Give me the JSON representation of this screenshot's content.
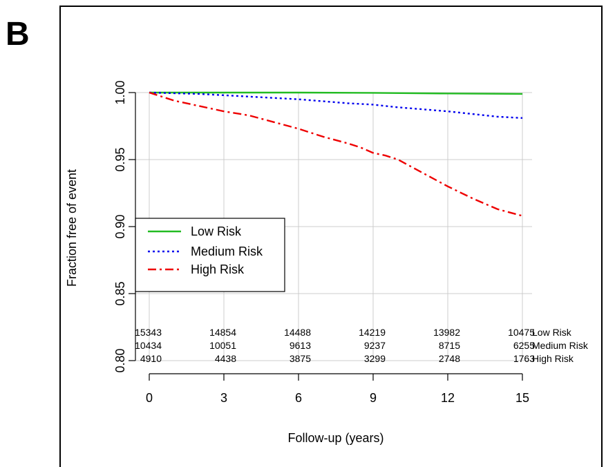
{
  "panel_label": "B",
  "chart_data": {
    "type": "line",
    "title": "",
    "xlabel": "Follow-up (years)",
    "ylabel": "Fraction free of event",
    "xlim": [
      0,
      15
    ],
    "ylim": [
      0.8,
      1.0
    ],
    "xticks": [
      0,
      3,
      6,
      9,
      12,
      15
    ],
    "yticks": [
      0.8,
      0.85,
      0.9,
      0.95,
      1.0
    ],
    "ytick_labels": [
      "0.80",
      "0.85",
      "0.90",
      "0.95",
      "1.00"
    ],
    "grid": true,
    "legend_position": "middle-left",
    "series": [
      {
        "name": "Low Risk",
        "color": "#22bb22",
        "line_style": "solid",
        "x": [
          0,
          3,
          6,
          9,
          12,
          15
        ],
        "y": [
          1.0,
          1.0,
          1.0,
          0.9998,
          0.9993,
          0.999
        ]
      },
      {
        "name": "Medium Risk",
        "color": "#0000ee",
        "line_style": "dotted",
        "x": [
          0,
          1,
          2,
          3,
          4,
          5,
          6,
          7,
          8,
          9,
          10,
          11,
          12,
          13,
          14,
          15
        ],
        "y": [
          1.0,
          0.9995,
          0.999,
          0.998,
          0.997,
          0.996,
          0.995,
          0.9935,
          0.992,
          0.991,
          0.989,
          0.9875,
          0.986,
          0.984,
          0.982,
          0.981
        ]
      },
      {
        "name": "High Risk",
        "color": "#ee0000",
        "line_style": "dashdot",
        "x": [
          0,
          0.5,
          1,
          2,
          3,
          4,
          5,
          6,
          7,
          8,
          8.5,
          9,
          9.5,
          10,
          11,
          12,
          13,
          14,
          15
        ],
        "y": [
          1.0,
          0.997,
          0.994,
          0.99,
          0.986,
          0.983,
          0.978,
          0.973,
          0.967,
          0.962,
          0.959,
          0.955,
          0.953,
          0.95,
          0.94,
          0.93,
          0.921,
          0.913,
          0.908
        ]
      }
    ],
    "risk_table": {
      "times": [
        0,
        3,
        6,
        9,
        12,
        15
      ],
      "rows": [
        {
          "label": "Low Risk",
          "values": [
            "15343",
            "14854",
            "14488",
            "14219",
            "13982",
            "10475"
          ]
        },
        {
          "label": "Medium Risk",
          "values": [
            "10434",
            "10051",
            "9613",
            "9237",
            "8715",
            "6255"
          ]
        },
        {
          "label": "High Risk",
          "values": [
            "4910",
            "4438",
            "3875",
            "3299",
            "2748",
            "1763"
          ]
        }
      ]
    }
  }
}
